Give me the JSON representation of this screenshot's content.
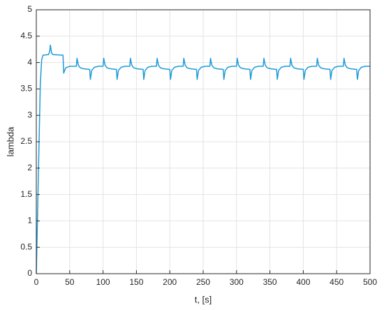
{
  "chart_data": {
    "type": "line",
    "xlabel": "t, [s]",
    "ylabel": "lambda",
    "x": [
      0,
      3,
      6,
      8,
      10,
      18,
      20,
      21,
      23,
      25,
      40,
      41,
      44,
      50,
      60,
      61,
      63,
      66,
      72,
      80,
      81,
      83,
      87,
      93,
      100,
      101,
      103,
      106,
      112,
      120,
      121,
      123,
      127,
      133,
      140,
      141,
      143,
      146,
      152,
      160,
      161,
      163,
      167,
      173,
      180,
      181,
      183,
      186,
      192,
      200,
      201,
      203,
      207,
      213,
      220,
      221,
      223,
      226,
      232,
      240,
      241,
      243,
      247,
      253,
      260,
      261,
      263,
      266,
      272,
      280,
      281,
      283,
      287,
      293,
      300,
      301,
      303,
      306,
      312,
      320,
      321,
      323,
      327,
      333,
      340,
      341,
      343,
      346,
      352,
      360,
      361,
      363,
      367,
      373,
      380,
      381,
      383,
      386,
      392,
      400,
      401,
      403,
      407,
      413,
      420,
      421,
      423,
      426,
      432,
      440,
      441,
      443,
      447,
      453,
      460,
      461,
      463,
      466,
      472,
      480,
      481,
      483,
      487,
      493,
      500
    ],
    "series": [
      {
        "color": "#1f9bd6",
        "values": [
          0,
          1.8,
          3.6,
          4.05,
          4.14,
          4.15,
          4.2,
          4.33,
          4.18,
          4.15,
          4.14,
          3.8,
          3.9,
          3.93,
          3.93,
          4.08,
          3.95,
          3.9,
          3.88,
          3.87,
          3.68,
          3.85,
          3.91,
          3.93,
          3.93,
          4.08,
          3.95,
          3.9,
          3.88,
          3.87,
          3.68,
          3.85,
          3.91,
          3.93,
          3.93,
          4.08,
          3.95,
          3.9,
          3.88,
          3.87,
          3.68,
          3.85,
          3.91,
          3.93,
          3.93,
          4.08,
          3.95,
          3.9,
          3.88,
          3.87,
          3.68,
          3.85,
          3.91,
          3.93,
          3.93,
          4.08,
          3.95,
          3.9,
          3.88,
          3.87,
          3.68,
          3.85,
          3.91,
          3.93,
          3.93,
          4.08,
          3.95,
          3.9,
          3.88,
          3.87,
          3.68,
          3.85,
          3.91,
          3.93,
          3.93,
          4.08,
          3.95,
          3.9,
          3.88,
          3.87,
          3.68,
          3.85,
          3.91,
          3.93,
          3.93,
          4.08,
          3.95,
          3.9,
          3.88,
          3.87,
          3.68,
          3.85,
          3.91,
          3.93,
          3.93,
          4.08,
          3.95,
          3.9,
          3.88,
          3.87,
          3.68,
          3.85,
          3.91,
          3.93,
          3.93,
          4.08,
          3.95,
          3.9,
          3.88,
          3.87,
          3.68,
          3.85,
          3.91,
          3.93,
          3.93,
          4.08,
          3.95,
          3.9,
          3.88,
          3.87,
          3.68,
          3.85,
          3.91,
          3.93,
          3.93
        ]
      }
    ],
    "xlim": [
      0,
      500
    ],
    "ylim": [
      0,
      5
    ],
    "xticks": [
      0,
      50,
      100,
      150,
      200,
      250,
      300,
      350,
      400,
      450,
      500
    ],
    "yticks": [
      0,
      0.5,
      1,
      1.5,
      2,
      2.5,
      3,
      3.5,
      4,
      4.5,
      5
    ],
    "grid": true
  }
}
